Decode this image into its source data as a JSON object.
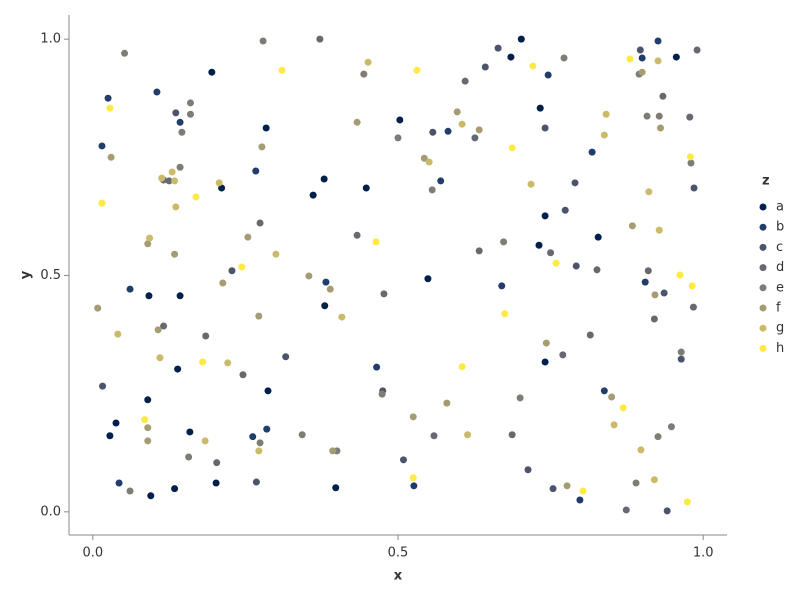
{
  "chart_data": {
    "type": "scatter",
    "x_label": "x",
    "y_label": "y",
    "legend_title": "z",
    "legend_position": "right",
    "xlim": [
      -0.039,
      1.039
    ],
    "ylim": [
      -0.049,
      1.051
    ],
    "xticks": [
      {
        "value": 0,
        "label": "0.0"
      },
      0.5,
      {
        "value": 1,
        "label": "1.0"
      }
    ],
    "yticks": [
      {
        "value": 0,
        "label": "0.0"
      },
      0.5,
      {
        "value": 1,
        "label": "1.0"
      }
    ],
    "series": [
      {
        "name": "a",
        "color": "#00204c",
        "x": [
          0.195,
          0.702,
          0.685,
          0.956,
          0.733,
          0.503,
          0.284,
          0.379,
          0.211,
          0.361,
          0.448,
          0.741,
          0.731,
          0.828,
          0.092,
          0.143,
          0.549,
          0.38,
          0.139,
          0.741,
          0.287,
          0.09,
          0.038,
          0.028,
          0.159,
          0.134,
          0.202,
          0.398,
          0.095
        ],
        "values": [
          0.93,
          1.0,
          0.962,
          0.962,
          0.854,
          0.829,
          0.812,
          0.704,
          0.685,
          0.67,
          0.685,
          0.626,
          0.564,
          0.581,
          0.457,
          0.457,
          0.493,
          0.436,
          0.302,
          0.317,
          0.256,
          0.237,
          0.188,
          0.161,
          0.169,
          0.049,
          0.061,
          0.051,
          0.034
        ]
      },
      {
        "name": "b",
        "color": "#213d6b",
        "x": [
          0.105,
          0.025,
          0.015,
          0.143,
          0.746,
          0.926,
          0.818,
          0.582,
          0.57,
          0.267,
          0.061,
          0.382,
          0.67,
          0.905,
          0.465,
          0.285,
          0.262,
          0.043,
          0.526,
          0.798,
          0.838,
          0.9
        ],
        "values": [
          0.888,
          0.875,
          0.774,
          0.824,
          0.924,
          0.996,
          0.761,
          0.805,
          0.7,
          0.721,
          0.471,
          0.486,
          0.478,
          0.486,
          0.306,
          0.175,
          0.159,
          0.061,
          0.055,
          0.025,
          0.256,
          0.96
        ]
      },
      {
        "name": "c",
        "color": "#4c546c",
        "x": [
          0.664,
          0.643,
          0.897,
          0.136,
          0.557,
          0.741,
          0.79,
          0.774,
          0.985,
          0.016,
          0.316,
          0.475,
          0.936,
          0.964,
          0.713,
          0.754,
          0.941,
          0.509,
          0.268,
          0.228,
          0.792
        ],
        "values": [
          0.981,
          0.941,
          0.977,
          0.844,
          0.803,
          0.812,
          0.696,
          0.638,
          0.685,
          0.266,
          0.328,
          0.256,
          0.463,
          0.323,
          0.089,
          0.049,
          0.002,
          0.11,
          0.063,
          0.51,
          0.52
        ]
      },
      {
        "name": "d",
        "color": "#666970",
        "x": [
          0.372,
          0.61,
          0.125,
          0.116,
          0.116,
          0.185,
          0.246,
          0.433,
          0.477,
          0.274,
          0.633,
          0.75,
          0.815,
          0.77,
          0.826,
          0.874,
          0.92,
          0.978,
          0.934,
          0.687,
          0.203,
          0.984,
          0.99,
          0.91,
          0.559,
          0.626
        ],
        "values": [
          1.0,
          0.911,
          0.7,
          0.702,
          0.393,
          0.372,
          0.29,
          0.585,
          0.461,
          0.611,
          0.552,
          0.548,
          0.374,
          0.332,
          0.512,
          0.004,
          0.408,
          0.835,
          0.879,
          0.163,
          0.104,
          0.433,
          0.977,
          0.51,
          0.161,
          0.791
        ]
      },
      {
        "name": "e",
        "color": "#7f7c75",
        "x": [
          0.052,
          0.279,
          0.444,
          0.16,
          0.16,
          0.146,
          0.143,
          0.5,
          0.556,
          0.772,
          0.895,
          0.908,
          0.928,
          0.98,
          0.673,
          0.474,
          0.343,
          0.157,
          0.4,
          0.061,
          0.7,
          0.948,
          0.964,
          0.89,
          0.926,
          0.274
        ],
        "values": [
          0.97,
          0.996,
          0.926,
          0.865,
          0.841,
          0.803,
          0.729,
          0.791,
          0.681,
          0.96,
          0.926,
          0.837,
          0.837,
          0.738,
          0.571,
          0.249,
          0.163,
          0.116,
          0.129,
          0.044,
          0.241,
          0.18,
          0.338,
          0.061,
          0.159,
          0.146
        ]
      },
      {
        "name": "f",
        "color": "#a59c74",
        "x": [
          0.03,
          0.254,
          0.134,
          0.09,
          0.389,
          0.354,
          0.213,
          0.272,
          0.433,
          0.597,
          0.633,
          0.543,
          0.93,
          0.884,
          0.743,
          0.525,
          0.58,
          0.008,
          0.107,
          0.921,
          0.9,
          0.777,
          0.85,
          0.09,
          0.09,
          0.393,
          0.277
        ],
        "values": [
          0.75,
          0.581,
          0.545,
          0.567,
          0.471,
          0.499,
          0.484,
          0.414,
          0.824,
          0.846,
          0.808,
          0.748,
          0.812,
          0.605,
          0.357,
          0.201,
          0.23,
          0.431,
          0.385,
          0.459,
          0.93,
          0.055,
          0.243,
          0.15,
          0.178,
          0.129,
          0.772
        ]
      },
      {
        "name": "g",
        "color": "#cbba69",
        "x": [
          0.451,
          0.113,
          0.134,
          0.13,
          0.136,
          0.093,
          0.207,
          0.3,
          0.408,
          0.718,
          0.911,
          0.928,
          0.838,
          0.841,
          0.926,
          0.11,
          0.041,
          0.221,
          0.184,
          0.272,
          0.614,
          0.898,
          0.854,
          0.92,
          0.551,
          0.605
        ],
        "values": [
          0.951,
          0.706,
          0.7,
          0.719,
          0.645,
          0.579,
          0.696,
          0.545,
          0.412,
          0.693,
          0.677,
          0.596,
          0.797,
          0.841,
          0.954,
          0.326,
          0.376,
          0.315,
          0.15,
          0.129,
          0.163,
          0.131,
          0.184,
          0.068,
          0.74,
          0.82
        ]
      },
      {
        "name": "h",
        "color": "#ffe945",
        "x": [
          0.028,
          0.015,
          0.31,
          0.531,
          0.721,
          0.88,
          0.169,
          0.687,
          0.979,
          0.464,
          0.759,
          0.962,
          0.982,
          0.675,
          0.18,
          0.244,
          0.605,
          0.085,
          0.869,
          0.525,
          0.803,
          0.974
        ],
        "values": [
          0.854,
          0.653,
          0.934,
          0.934,
          0.943,
          0.958,
          0.666,
          0.77,
          0.751,
          0.571,
          0.526,
          0.501,
          0.478,
          0.419,
          0.317,
          0.518,
          0.307,
          0.195,
          0.22,
          0.072,
          0.044,
          0.021
        ]
      }
    ]
  }
}
